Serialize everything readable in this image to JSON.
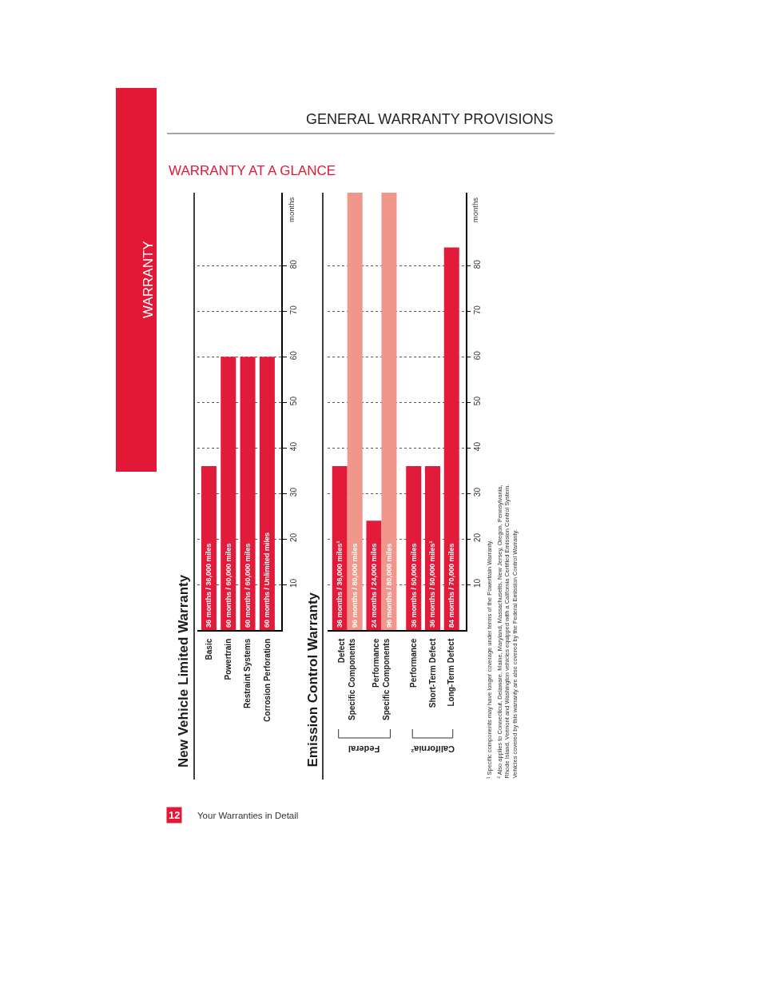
{
  "chart_data": [
    {
      "type": "bar",
      "title": "New Vehicle Limited Warranty",
      "ylabel": "months",
      "categories": [
        "Basic",
        "Powertrain",
        "Restraint Systems",
        "Corrosion Perforation"
      ],
      "values": [
        36,
        60,
        60,
        60
      ],
      "color": "#e31b3b",
      "value_labels": [
        "36 months / 36,000 miles",
        "60 months / 60,000 miles",
        "60 months / 60,000 miles",
        "60 months / Unlimited miles"
      ],
      "ylim": [
        0,
        96
      ],
      "yticks": [
        10,
        20,
        30,
        40,
        50,
        60,
        70,
        80
      ],
      "grid": "y",
      "annotations": [
        "WARRANTY",
        "GENERAL WARRANTY PROVISIONS",
        "WARRANTY AT A GLANCE",
        "12",
        "Your Warranties in Detail"
      ]
    },
    {
      "type": "bar",
      "title": "Emission Control Warranty",
      "ylabel": "months",
      "categories": [
        "Defect\nSpecific Components",
        "Performance\nSpecific Components",
        "Performance",
        "Short-Term Defect",
        "Long-Term Defect"
      ],
      "series": [
        {
          "color": "#e31b3b",
          "values": [
            36,
            24,
            36,
            36,
            84
          ],
          "value_labels": [
            "36 months / 36,000 miles¹",
            "24 months / 24,000 miles",
            "36 months / 50,000 miles",
            "36 months / 50,000 miles¹",
            "84 months / 70,000 miles"
          ]
        },
        {
          "color": "#f0968a",
          "values": [
            96,
            96,
            null,
            null,
            null
          ],
          "value_labels": [
            "96 months / 80,000 miles",
            "96 months / 80,000 miles",
            null,
            null,
            null
          ]
        }
      ],
      "ylim": [
        0,
        96
      ],
      "yticks": [
        10,
        20,
        30,
        40,
        50,
        60,
        70,
        80
      ],
      "grid": "y",
      "annotations": [
        "Federal",
        "California²",
        "¹ Specific components may have longer coverage under terms of the Powertrain Warranty.",
        "² Also applies to Connecticut, Delaware, Maine, Maryland, Massachusetts, New Jersey, Oregon, Pennsylvania,\nRhode Island, Vermont and Washington vehicles equipped with a California Certified Emission Control System.\nVehicles covered by this warranty are also covered by the Federal Emission Control Warranty."
      ]
    }
  ]
}
